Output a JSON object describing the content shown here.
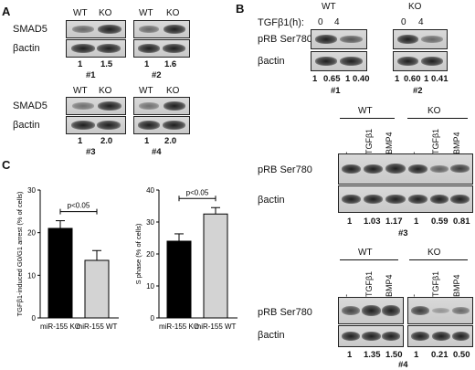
{
  "panels": {
    "A": {
      "letter": "A",
      "blots": [
        {
          "id": "#1",
          "cols": [
            "WT",
            "KO"
          ],
          "rows": [
            "SMAD5",
            "βactin"
          ],
          "values": [
            "1",
            "1.5"
          ]
        },
        {
          "id": "#2",
          "cols": [
            "WT",
            "KO"
          ],
          "rows": [
            "",
            ""
          ],
          "values": [
            "1",
            "1.6"
          ]
        },
        {
          "id": "#3",
          "cols": [
            "WT",
            "KO"
          ],
          "rows": [
            "SMAD5",
            "βactin"
          ],
          "values": [
            "1",
            "2.0"
          ]
        },
        {
          "id": "#4",
          "cols": [
            "WT",
            "KO"
          ],
          "rows": [
            "",
            ""
          ],
          "values": [
            "1",
            "2.0"
          ]
        }
      ]
    },
    "B": {
      "letter": "B",
      "top": {
        "treatment_label": "TGFβ1(h):",
        "groups": [
          "WT",
          "KO"
        ],
        "times": [
          "0",
          "4",
          "0",
          "4"
        ],
        "rows": [
          "pRB Ser780",
          "βactin"
        ],
        "blot1": {
          "id": "#1",
          "values": [
            "1",
            "0.65",
            "1",
            "0.40"
          ]
        },
        "blot2": {
          "id": "#2",
          "values": [
            "1",
            "0.60",
            "1",
            "0.41"
          ]
        }
      },
      "mid": {
        "id": "#3",
        "groups": [
          "WT",
          "KO"
        ],
        "lanes": [
          "-",
          "TGFβ1",
          "BMP4",
          "-",
          "TGFβ1",
          "BMP4"
        ],
        "rows": [
          "pRB Ser780",
          "βactin"
        ],
        "values": [
          "1",
          "1.03",
          "1.17",
          "1",
          "0.59",
          "0.81"
        ]
      },
      "bottom": {
        "id": "#4",
        "groups": [
          "WT",
          "KO"
        ],
        "lanes": [
          "-",
          "TGFβ1",
          "BMP4",
          "-",
          "TGFβ1",
          "BMP4"
        ],
        "rows": [
          "pRB Ser780",
          "βactin"
        ],
        "values": [
          "1",
          "1.35",
          "1.50",
          "1",
          "0.21",
          "0.50"
        ]
      }
    },
    "C": {
      "letter": "C"
    }
  },
  "chart_data": [
    {
      "type": "bar",
      "categories": [
        "miR-155 KO",
        "miR-155 WT"
      ],
      "values": [
        21,
        13.5
      ],
      "errors": [
        1.8,
        2.3
      ],
      "colors": [
        "#000000",
        "#d3d3d3"
      ],
      "ylabel": "TGFβ1-induced G0/G1 arrest (% of cells)",
      "ylim": [
        0,
        30
      ],
      "yticks": [
        "0",
        "10",
        "20",
        "30"
      ],
      "annotation": "p<0.05"
    },
    {
      "type": "bar",
      "categories": [
        "miR-155 KO",
        "miR-155 WT"
      ],
      "values": [
        24,
        32.5
      ],
      "errors": [
        2.3,
        2.0
      ],
      "colors": [
        "#000000",
        "#d3d3d3"
      ],
      "ylabel": "S phase (% of cells)",
      "ylim": [
        0,
        40
      ],
      "yticks": [
        "0",
        "10",
        "20",
        "30",
        "40"
      ],
      "annotation": "p<0.05"
    }
  ]
}
